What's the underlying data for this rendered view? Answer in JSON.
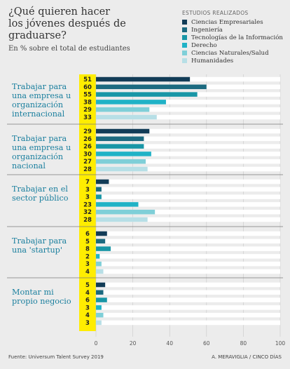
{
  "title": "¿Qué quieren hacer los jóvenes después de graduarse?",
  "subtitle": "En % sobre el total de estudiantes",
  "legend_title": "ESTUDIOS REALIZADOS",
  "source": "Fuente: Universum Talent Survey 2019",
  "credit": "A. MERAVIGLIA / CINCO DÍAS",
  "colors": {
    "background": "#ececec",
    "track": "#ffffff",
    "label_column": "#ffed00",
    "group_label": "#1a7f9e",
    "separator": "#7a7a7a"
  },
  "chart_data": {
    "type": "bar",
    "orientation": "horizontal",
    "xlim": [
      0,
      100
    ],
    "xticks": [
      0,
      20,
      40,
      60,
      80,
      100
    ],
    "grid": true,
    "legend_placement": "top-right",
    "series": [
      {
        "name": "Ciencias Empresariales",
        "color": "#123c57"
      },
      {
        "name": "Ingeniería",
        "color": "#1c6a80"
      },
      {
        "name": "Tecnologías de la Información",
        "color": "#1896a6"
      },
      {
        "name": "Derecho",
        "color": "#20b2c6"
      },
      {
        "name": "Ciencias Naturales/Salud",
        "color": "#7fcfd8"
      },
      {
        "name": "Humanidades",
        "color": "#b7dfe6"
      }
    ],
    "groups": [
      {
        "label": "Trabajar para una empresa u organización internacional",
        "values": [
          51,
          60,
          55,
          38,
          29,
          33
        ]
      },
      {
        "label": "Trabajar para una empresa u organización nacional",
        "values": [
          29,
          26,
          26,
          30,
          27,
          28
        ]
      },
      {
        "label": "Trabajar en el sector público",
        "values": [
          7,
          3,
          3,
          23,
          32,
          28
        ]
      },
      {
        "label": "Trabajar para una 'startup'",
        "values": [
          6,
          5,
          8,
          2,
          3,
          4
        ]
      },
      {
        "label": "Montar mi propio negocio",
        "values": [
          5,
          4,
          6,
          3,
          4,
          3
        ]
      }
    ]
  }
}
